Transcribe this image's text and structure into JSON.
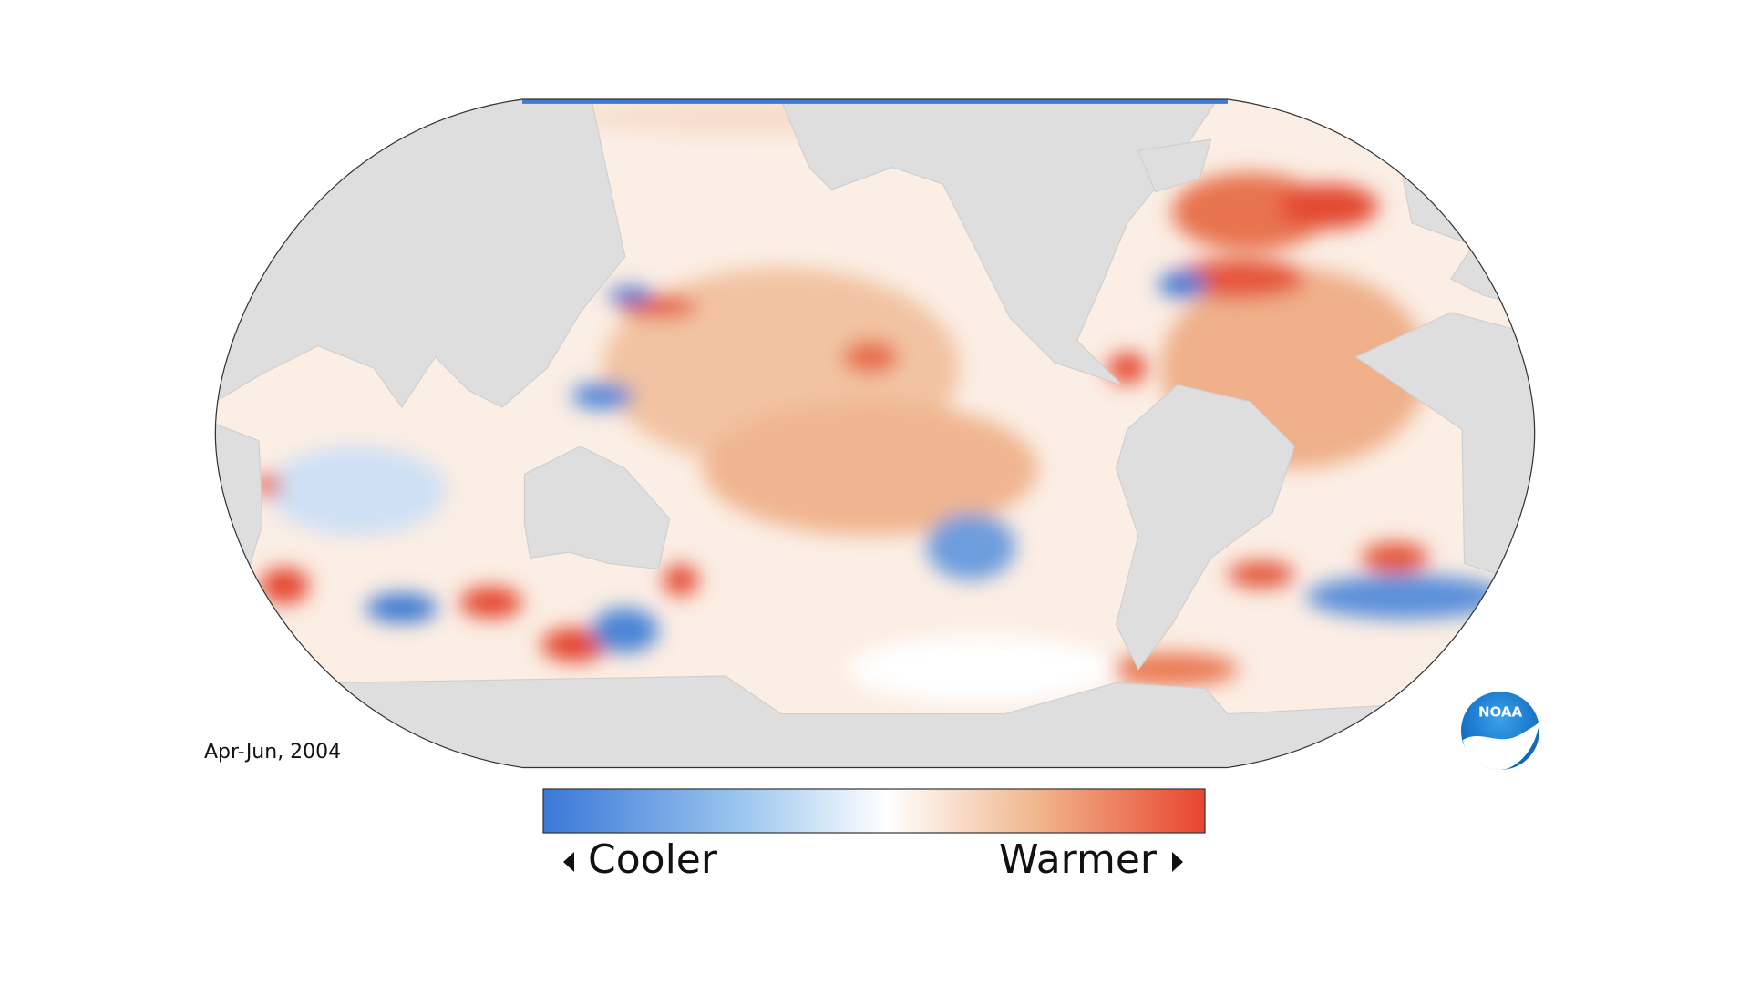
{
  "map": {
    "date": "Apr-Jun, 2004",
    "legend": {
      "low": "Cooler",
      "high": "Warmer"
    },
    "logo": "NOAA"
  }
}
